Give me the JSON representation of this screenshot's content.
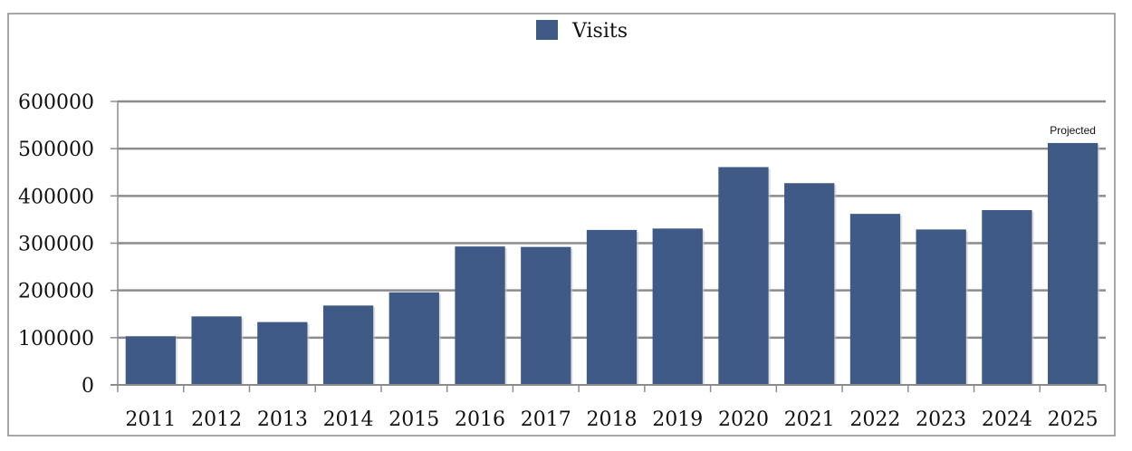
{
  "chart_data": {
    "type": "bar",
    "categories": [
      "2011",
      "2012",
      "2013",
      "2014",
      "2015",
      "2016",
      "2017",
      "2018",
      "2019",
      "2020",
      "2021",
      "2022",
      "2023",
      "2024",
      "2025"
    ],
    "series": [
      {
        "name": "Visits",
        "color": "#405a87",
        "values": [
          103000,
          145000,
          133000,
          168000,
          196000,
          293000,
          292000,
          328000,
          331000,
          461000,
          427000,
          362000,
          329000,
          370000,
          512000
        ]
      }
    ],
    "ylim": [
      0,
      600000
    ],
    "yticks": [
      "0",
      "100000",
      "200000",
      "300000",
      "400000",
      "500000",
      "600000"
    ],
    "grid": true,
    "legend_position": "top-center",
    "annotations": [
      {
        "category": "2025",
        "text": "Projected"
      }
    ]
  }
}
